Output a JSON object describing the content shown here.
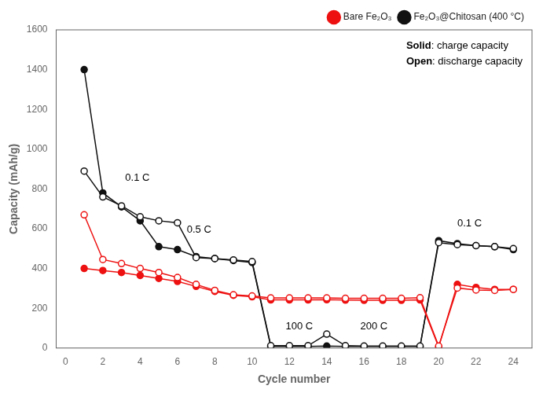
{
  "chart_data": {
    "type": "line",
    "xlabel": "Cycle number",
    "ylabel": "Capacity (mAh/g)",
    "xlim": [
      -0.5,
      25
    ],
    "ylim": [
      0,
      1600
    ],
    "xticks": [
      0,
      2,
      4,
      6,
      8,
      10,
      12,
      14,
      16,
      18,
      20,
      22,
      24
    ],
    "yticks": [
      0,
      200,
      400,
      600,
      800,
      1000,
      1200,
      1400,
      1600
    ],
    "grid": false,
    "legend": "upper right",
    "x": [
      1,
      2,
      3,
      4,
      5,
      6,
      7,
      8,
      9,
      10,
      11,
      12,
      13,
      14,
      15,
      16,
      17,
      18,
      19,
      20,
      21,
      22,
      23,
      24
    ],
    "series": [
      {
        "color": "#EE1111",
        "marker": "open_circle",
        "line_style": "solid",
        "values": [
          670,
          445,
          425,
          400,
          380,
          355,
          320,
          290,
          268,
          262,
          252,
          252,
          252,
          252,
          250,
          250,
          250,
          250,
          253,
          10,
          302,
          292,
          290,
          295
        ]
      },
      {
        "name": "Bare Fe₂O₃",
        "color": "#EE1111",
        "marker": "circle",
        "line_style": "solid",
        "values": [
          400,
          390,
          380,
          365,
          350,
          335,
          310,
          285,
          265,
          258,
          242,
          242,
          242,
          243,
          241,
          240,
          240,
          240,
          242,
          5,
          320,
          305,
          295,
          295
        ]
      },
      {
        "color": "#111111",
        "marker": "open_circle",
        "line_style": "solid",
        "values": [
          890,
          760,
          715,
          660,
          640,
          630,
          455,
          450,
          443,
          435,
          12,
          12,
          12,
          70,
          12,
          10,
          10,
          10,
          10,
          530,
          520,
          515,
          510,
          500
        ]
      },
      {
        "name": "Fe₂O₃@Chitosan (400 °C)",
        "color": "#111111",
        "marker": "circle",
        "line_style": "solid",
        "values": [
          1400,
          780,
          710,
          640,
          510,
          495,
          460,
          450,
          440,
          430,
          8,
          8,
          8,
          10,
          8,
          8,
          8,
          8,
          8,
          540,
          525,
          515,
          510,
          495
        ]
      }
    ],
    "annotations": [
      {
        "text": "0.1 C",
        "x": 3.2,
        "y": 840
      },
      {
        "text": "0.5 C",
        "x": 6.5,
        "y": 580
      },
      {
        "text": "100 C",
        "x": 11.8,
        "y": 95
      },
      {
        "text": "200 C",
        "x": 15.8,
        "y": 95
      },
      {
        "text": "0.1 C",
        "x": 21.0,
        "y": 610
      },
      {
        "text": "Solid: charge capacity"
      },
      {
        "text": "Open: discharge capacity"
      }
    ]
  }
}
